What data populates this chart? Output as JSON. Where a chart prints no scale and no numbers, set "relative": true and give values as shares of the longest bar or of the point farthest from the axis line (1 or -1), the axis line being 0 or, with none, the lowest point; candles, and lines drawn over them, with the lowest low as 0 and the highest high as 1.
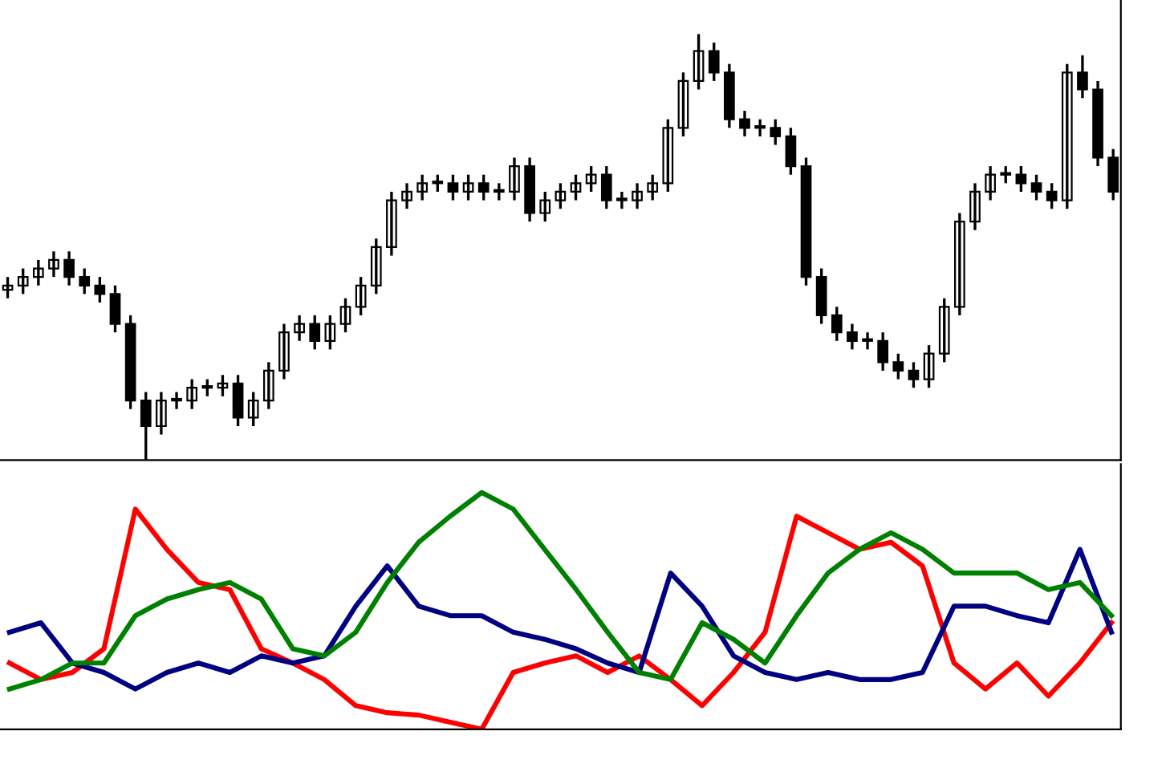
{
  "chart_data": [
    {
      "type": "candlestick",
      "relative": true,
      "color": "#000000",
      "categories": [
        null,
        null,
        null,
        null,
        null,
        null,
        null,
        null,
        null,
        null,
        null,
        null,
        null,
        null,
        null,
        null,
        null,
        null,
        null,
        null,
        null,
        null,
        null,
        null,
        null,
        null,
        null,
        null,
        null,
        null,
        null,
        null,
        null,
        null,
        null,
        null,
        null,
        null,
        null,
        null,
        null,
        null,
        null,
        null,
        null,
        null,
        null,
        null,
        null,
        null,
        null,
        null,
        null,
        null,
        null,
        null,
        null,
        null,
        null,
        null,
        null,
        null,
        null,
        null,
        null,
        null,
        null,
        null,
        null,
        null,
        null,
        null,
        null
      ],
      "ohlc": [
        [
          0.4,
          0.43,
          0.38,
          0.41
        ],
        [
          0.41,
          0.45,
          0.39,
          0.43
        ],
        [
          0.43,
          0.47,
          0.41,
          0.45
        ],
        [
          0.45,
          0.49,
          0.43,
          0.47
        ],
        [
          0.47,
          0.49,
          0.41,
          0.43
        ],
        [
          0.43,
          0.45,
          0.39,
          0.41
        ],
        [
          0.41,
          0.43,
          0.37,
          0.39
        ],
        [
          0.39,
          0.41,
          0.3,
          0.32
        ],
        [
          0.32,
          0.34,
          0.12,
          0.14
        ],
        [
          0.14,
          0.16,
          0.0,
          0.08
        ],
        [
          0.08,
          0.16,
          0.06,
          0.14
        ],
        [
          0.14,
          0.16,
          0.12,
          0.14
        ],
        [
          0.14,
          0.19,
          0.12,
          0.17
        ],
        [
          0.17,
          0.19,
          0.15,
          0.17
        ],
        [
          0.17,
          0.2,
          0.15,
          0.18
        ],
        [
          0.18,
          0.2,
          0.08,
          0.1
        ],
        [
          0.1,
          0.16,
          0.08,
          0.14
        ],
        [
          0.14,
          0.23,
          0.12,
          0.21
        ],
        [
          0.21,
          0.32,
          0.19,
          0.3
        ],
        [
          0.3,
          0.34,
          0.28,
          0.32
        ],
        [
          0.32,
          0.34,
          0.26,
          0.28
        ],
        [
          0.28,
          0.34,
          0.26,
          0.32
        ],
        [
          0.32,
          0.38,
          0.3,
          0.36
        ],
        [
          0.36,
          0.43,
          0.34,
          0.41
        ],
        [
          0.41,
          0.52,
          0.39,
          0.5
        ],
        [
          0.5,
          0.63,
          0.48,
          0.61
        ],
        [
          0.61,
          0.65,
          0.59,
          0.63
        ],
        [
          0.63,
          0.67,
          0.61,
          0.65
        ],
        [
          0.65,
          0.67,
          0.63,
          0.65
        ],
        [
          0.65,
          0.67,
          0.61,
          0.63
        ],
        [
          0.63,
          0.67,
          0.61,
          0.65
        ],
        [
          0.65,
          0.67,
          0.61,
          0.63
        ],
        [
          0.63,
          0.65,
          0.61,
          0.63
        ],
        [
          0.63,
          0.71,
          0.61,
          0.69
        ],
        [
          0.69,
          0.71,
          0.56,
          0.58
        ],
        [
          0.58,
          0.63,
          0.56,
          0.61
        ],
        [
          0.61,
          0.65,
          0.59,
          0.63
        ],
        [
          0.63,
          0.67,
          0.61,
          0.65
        ],
        [
          0.65,
          0.69,
          0.63,
          0.67
        ],
        [
          0.67,
          0.69,
          0.59,
          0.61
        ],
        [
          0.61,
          0.63,
          0.59,
          0.61
        ],
        [
          0.61,
          0.65,
          0.59,
          0.63
        ],
        [
          0.63,
          0.67,
          0.61,
          0.65
        ],
        [
          0.65,
          0.8,
          0.63,
          0.78
        ],
        [
          0.78,
          0.91,
          0.76,
          0.89
        ],
        [
          0.89,
          1.0,
          0.87,
          0.96
        ],
        [
          0.96,
          0.98,
          0.89,
          0.91
        ],
        [
          0.91,
          0.93,
          0.78,
          0.8
        ],
        [
          0.8,
          0.82,
          0.76,
          0.78
        ],
        [
          0.78,
          0.8,
          0.76,
          0.78
        ],
        [
          0.78,
          0.8,
          0.74,
          0.76
        ],
        [
          0.76,
          0.78,
          0.67,
          0.69
        ],
        [
          0.69,
          0.71,
          0.41,
          0.43
        ],
        [
          0.43,
          0.45,
          0.32,
          0.34
        ],
        [
          0.34,
          0.36,
          0.28,
          0.3
        ],
        [
          0.3,
          0.32,
          0.26,
          0.28
        ],
        [
          0.28,
          0.3,
          0.26,
          0.28
        ],
        [
          0.28,
          0.3,
          0.21,
          0.23
        ],
        [
          0.23,
          0.25,
          0.19,
          0.21
        ],
        [
          0.21,
          0.23,
          0.17,
          0.19
        ],
        [
          0.19,
          0.27,
          0.17,
          0.25
        ],
        [
          0.25,
          0.38,
          0.23,
          0.36
        ],
        [
          0.36,
          0.58,
          0.34,
          0.56
        ],
        [
          0.56,
          0.65,
          0.54,
          0.63
        ],
        [
          0.63,
          0.69,
          0.61,
          0.67
        ],
        [
          0.67,
          0.69,
          0.65,
          0.67
        ],
        [
          0.67,
          0.69,
          0.63,
          0.65
        ],
        [
          0.65,
          0.67,
          0.61,
          0.63
        ],
        [
          0.63,
          0.65,
          0.59,
          0.61
        ],
        [
          0.61,
          0.93,
          0.59,
          0.91
        ],
        [
          0.91,
          0.95,
          0.85,
          0.87
        ],
        [
          0.87,
          0.89,
          0.69,
          0.71
        ],
        [
          0.71,
          0.73,
          0.61,
          0.63
        ]
      ]
    },
    {
      "type": "line",
      "relative": true,
      "categories": [
        null,
        null,
        null,
        null,
        null,
        null,
        null,
        null,
        null,
        null,
        null,
        null,
        null,
        null,
        null,
        null,
        null,
        null,
        null,
        null,
        null,
        null,
        null,
        null,
        null,
        null,
        null,
        null,
        null,
        null,
        null,
        null,
        null,
        null,
        null,
        null
      ],
      "series": [
        {
          "color": "#ff0000",
          "values": [
            0.28,
            0.21,
            0.24,
            0.34,
            0.93,
            0.76,
            0.62,
            0.59,
            0.34,
            0.28,
            0.21,
            0.1,
            0.07,
            0.06,
            0.03,
            0.0,
            0.24,
            0.28,
            0.31,
            0.24,
            0.31,
            0.21,
            0.1,
            0.24,
            0.41,
            0.9,
            0.83,
            0.76,
            0.79,
            0.69,
            0.28,
            0.17,
            0.28,
            0.14,
            0.28,
            0.45
          ]
        },
        {
          "color": "#000080",
          "values": [
            0.41,
            0.45,
            0.28,
            0.24,
            0.17,
            0.24,
            0.28,
            0.24,
            0.31,
            0.28,
            0.31,
            0.52,
            0.69,
            0.52,
            0.48,
            0.48,
            0.41,
            0.38,
            0.34,
            0.28,
            0.24,
            0.66,
            0.52,
            0.31,
            0.24,
            0.21,
            0.24,
            0.21,
            0.21,
            0.24,
            0.52,
            0.52,
            0.48,
            0.45,
            0.76,
            0.41
          ]
        },
        {
          "color": "#008000",
          "values": [
            0.17,
            0.21,
            0.28,
            0.28,
            0.48,
            0.55,
            0.59,
            0.62,
            0.55,
            0.34,
            0.31,
            0.41,
            0.62,
            0.79,
            0.9,
            1.0,
            0.93,
            0.76,
            0.59,
            0.41,
            0.24,
            0.21,
            0.45,
            0.38,
            0.28,
            0.48,
            0.66,
            0.76,
            0.83,
            0.76,
            0.66,
            0.66,
            0.66,
            0.59,
            0.62,
            0.48
          ]
        }
      ]
    }
  ]
}
